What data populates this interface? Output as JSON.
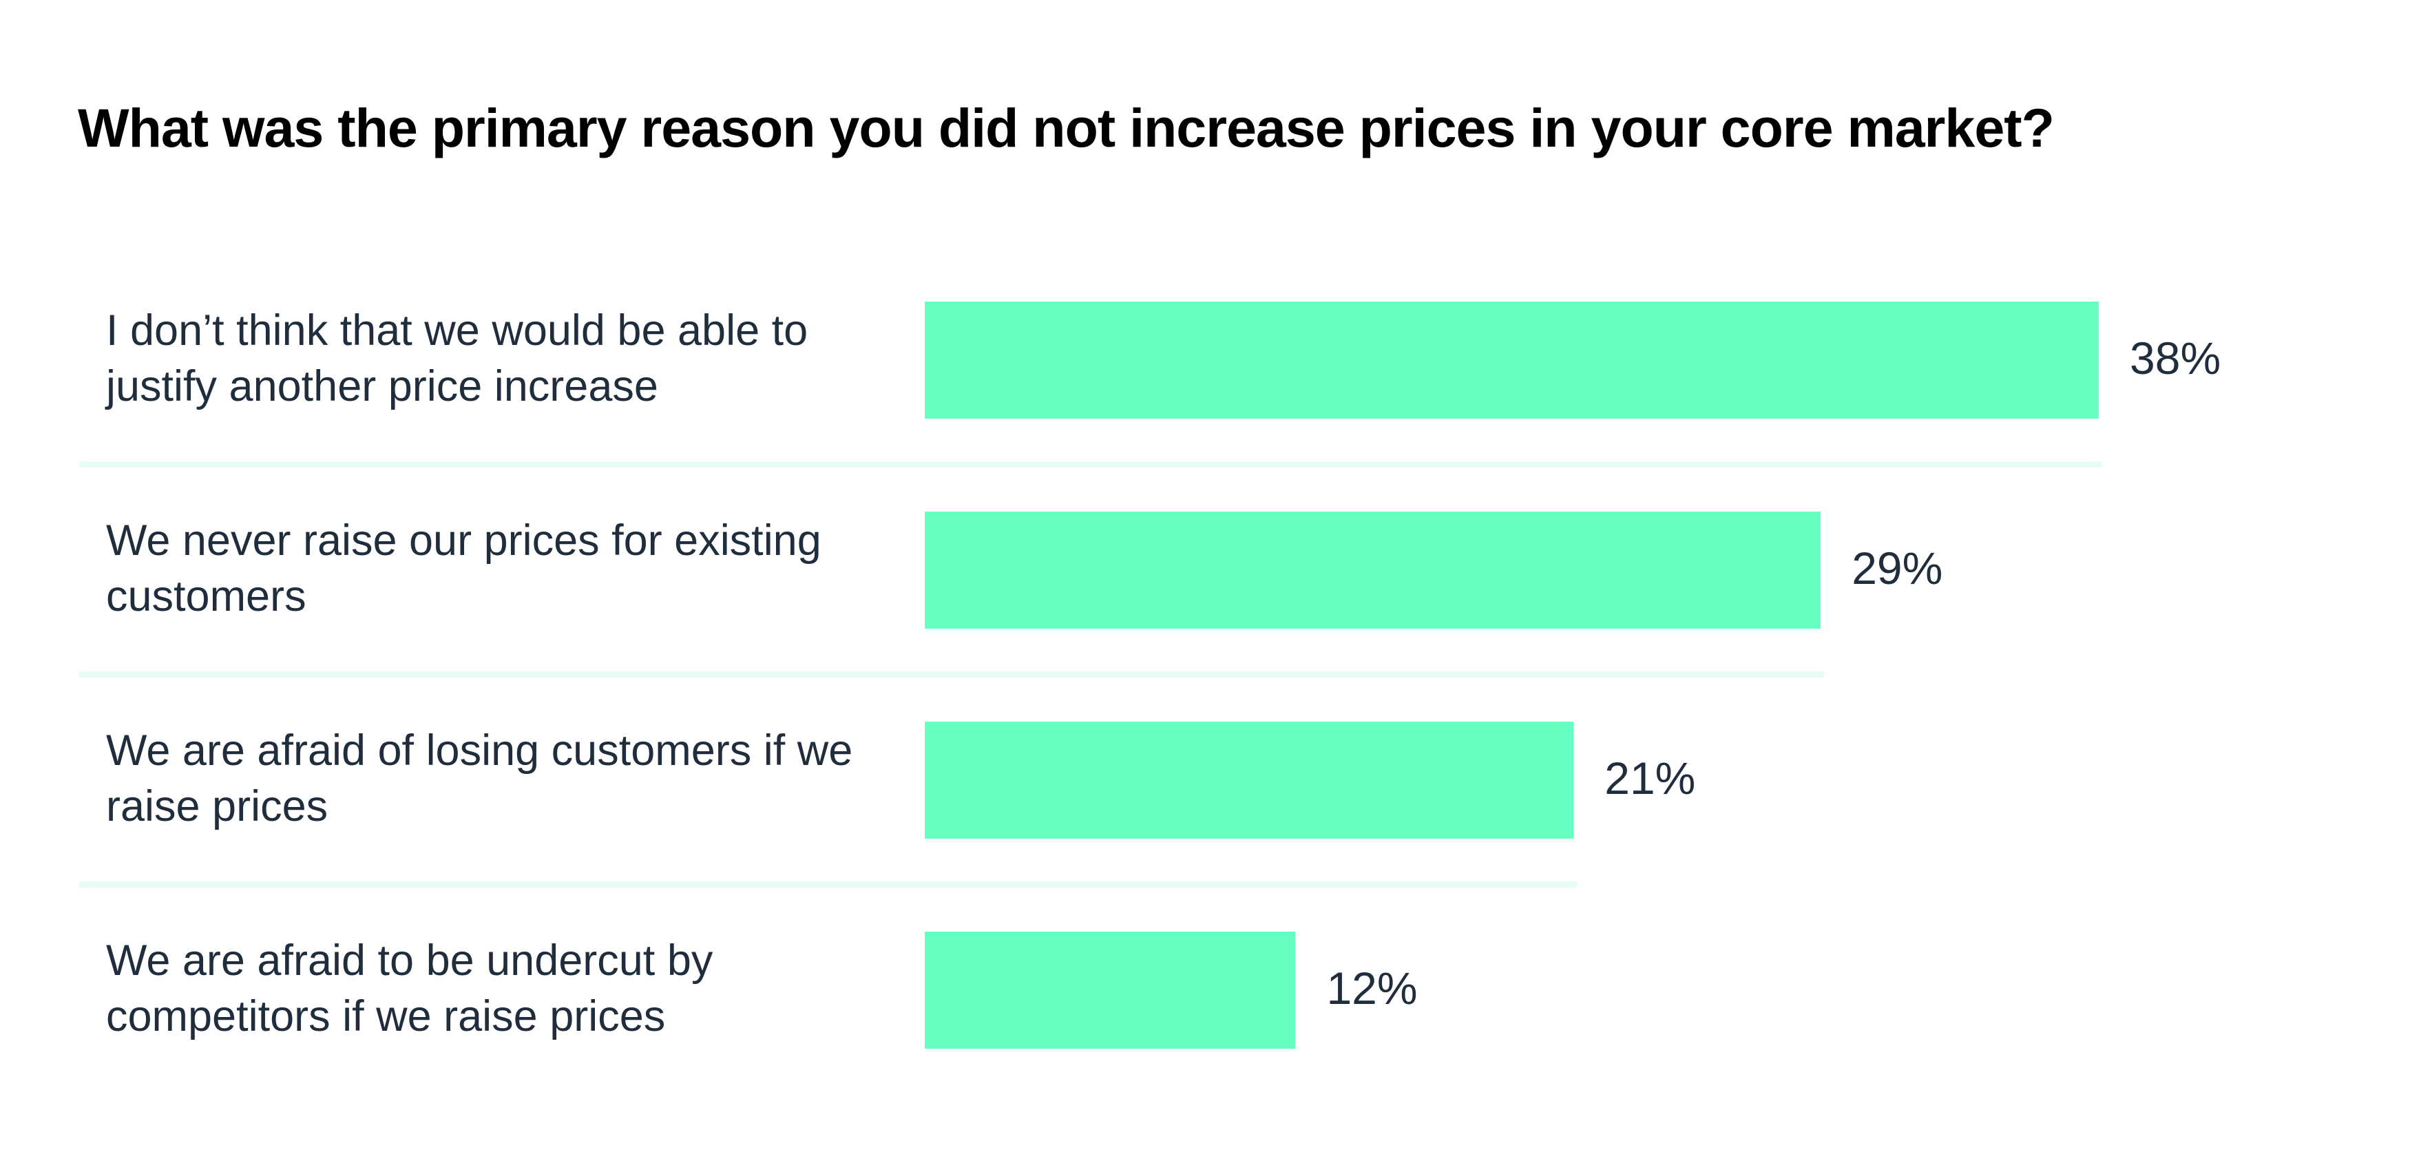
{
  "chart_data": {
    "type": "bar",
    "orientation": "horizontal",
    "title": "What was the primary reason you did not increase prices in your core market?",
    "categories": [
      "I don’t think that we would be able to justify another price increase",
      "We never raise our prices for existing customers",
      "We are afraid of losing customers if we raise prices",
      "We are afraid to be undercut by competitors if we raise prices"
    ],
    "values": [
      38,
      29,
      21,
      12
    ],
    "value_labels": [
      "38%",
      "29%",
      "21%",
      "12%"
    ],
    "unit": "%",
    "grid": false,
    "legend": "none",
    "colors": {
      "bar": "#66ffc2",
      "separator": "#e6fcf5",
      "text": "#1f2d3d",
      "title": "#000000"
    }
  }
}
